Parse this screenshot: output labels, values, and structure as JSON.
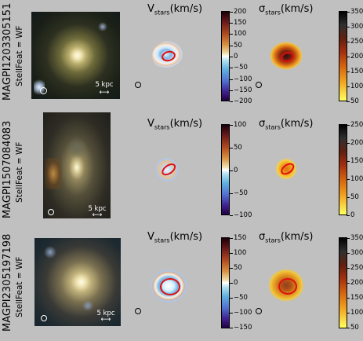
{
  "rows": [
    {
      "id": "MAGPI1203305151",
      "stellfeat": "StellFeat = WF",
      "scale_label": "5 kpc",
      "velocity_title": "V",
      "velocity_sub": "stars",
      "velocity_unit": "(km/s)",
      "dispersion_title": "σ",
      "dispersion_sub": "stars",
      "dispersion_unit": "(km/s)",
      "velocity_ticks": [
        "200",
        "150",
        "100",
        "50",
        "0",
        "−50",
        "−100",
        "−150",
        "−200"
      ],
      "dispersion_ticks": [
        "350",
        "300",
        "250",
        "200",
        "150",
        "100",
        "50"
      ]
    },
    {
      "id": "MAGPI1507084083",
      "stellfeat": "StellFeat = WF",
      "scale_label": "5 kpc",
      "velocity_title": "V",
      "velocity_sub": "stars",
      "velocity_unit": "(km/s)",
      "dispersion_title": "σ",
      "dispersion_sub": "stars",
      "dispersion_unit": "(km/s)",
      "velocity_ticks": [
        "100",
        "50",
        "0",
        "−50",
        "−100"
      ],
      "dispersion_ticks": [
        "250",
        "200",
        "150",
        "100",
        "50",
        "0"
      ]
    },
    {
      "id": "MAGPI2305197198",
      "stellfeat": "StellFeat = WF",
      "scale_label": "5 kpc",
      "velocity_title": "V",
      "velocity_sub": "stars",
      "velocity_unit": "(km/s)",
      "dispersion_title": "σ",
      "dispersion_sub": "stars",
      "dispersion_unit": "(km/s)",
      "velocity_ticks": [
        "150",
        "100",
        "50",
        "0",
        "−50",
        "−100",
        "−150"
      ],
      "dispersion_ticks": [
        "350",
        "300",
        "250",
        "200",
        "150",
        "100",
        "50"
      ]
    }
  ]
}
